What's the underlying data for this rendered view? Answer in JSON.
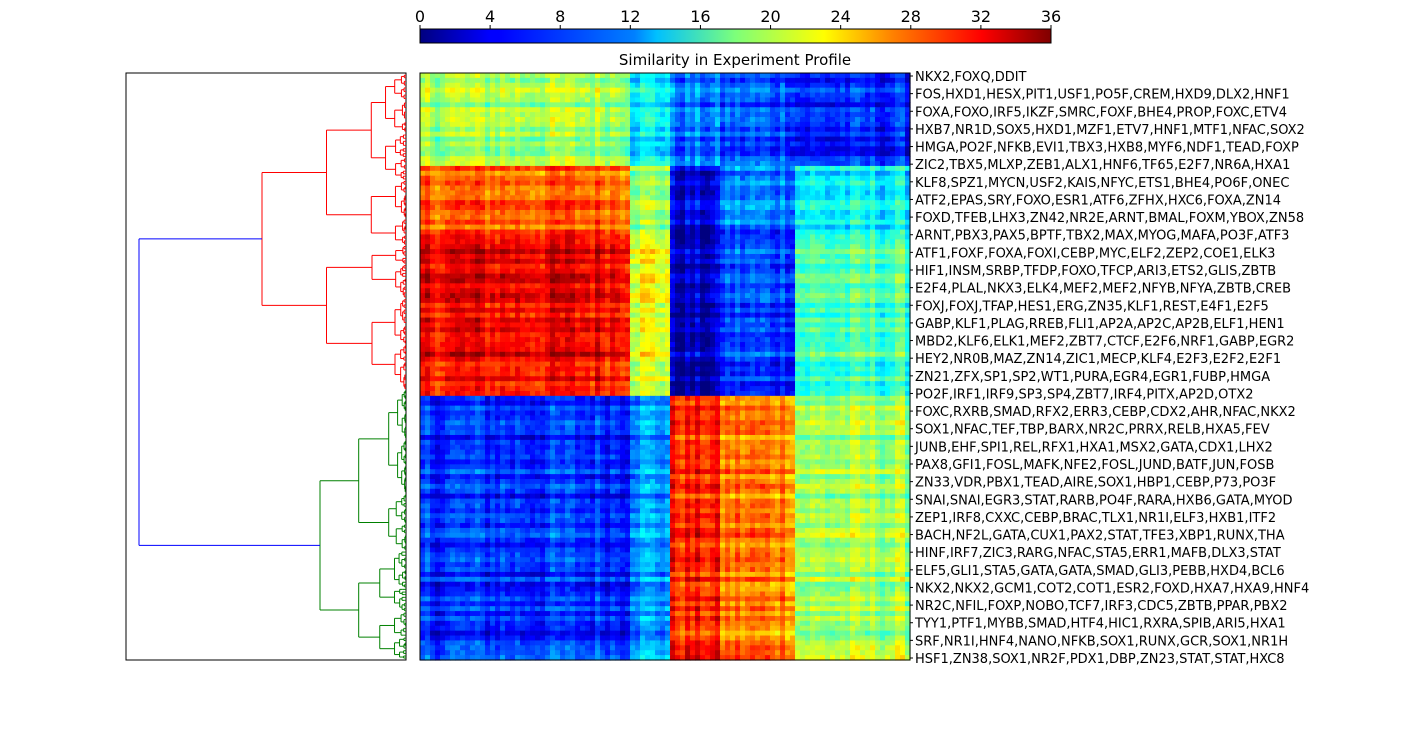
{
  "chart_data": {
    "type": "heatmap",
    "title": "Similarity in Experiment Profile",
    "colorbar": {
      "ticks": [
        0,
        4,
        8,
        12,
        16,
        20,
        24,
        28,
        32,
        36
      ],
      "range": [
        0,
        36
      ],
      "colormap": "jet",
      "placement": "top"
    },
    "row_labels": [
      "NKX2,FOXQ,DDIT",
      "FOS,HXD1,HESX,PIT1,USF1,PO5F,CREM,HXD9,DLX2,HNF1",
      "FOXA,FOXO,IRF5,IKZF,SMRC,FOXF,BHE4,PROP,FOXC,ETV4",
      "HXB7,NR1D,SOX5,HXD1,MZF1,ETV7,HNF1,MTF1,NFAC,SOX2",
      "HMGA,PO2F,NFKB,EVI1,TBX3,HXB8,MYF6,NDF1,TEAD,FOXP",
      "ZIC2,TBX5,MLXP,ZEB1,ALX1,HNF6,TF65,E2F7,NR6A,HXA1",
      "KLF8,SPZ1,MYCN,USF2,KAIS,NFYC,ETS1,BHE4,PO6F,ONEC",
      "ATF2,EPAS,SRY,FOXO,ESR1,ATF6,ZFHX,HXC6,FOXA,ZN14",
      "FOXD,TFEB,LHX3,ZN42,NR2E,ARNT,BMAL,FOXM,YBOX,ZN58",
      "ARNT,PBX3,PAX5,BPTF,TBX2,MAX,MYOG,MAFA,PO3F,ATF3",
      "ATF1,FOXF,FOXA,FOXI,CEBP,MYC,ELF2,ZEP2,COE1,ELK3",
      "HIF1,INSM,SRBP,TFDP,FOXO,TFCP,ARI3,ETS2,GLIS,ZBTB",
      "E2F4,PLAL,NKX3,ELK4,MEF2,MEF2,NFYB,NFYA,ZBTB,CREB",
      "FOXJ,FOXJ,TFAP,HES1,ERG,ZN35,KLF1,REST,E4F1,E2F5",
      "GABP,KLF1,PLAG,RREB,FLI1,AP2A,AP2C,AP2B,ELF1,HEN1",
      "MBD2,KLF6,ELK1,MEF2,ZBT7,CTCF,E2F6,NRF1,GABP,EGR2",
      "HEY2,NR0B,MAZ,ZN14,ZIC1,MECP,KLF4,E2F3,E2F2,E2F1",
      "ZN21,ZFX,SP1,SP2,WT1,PURA,EGR4,EGR1,FUBP,HMGA",
      "PO2F,IRF1,IRF9,SP3,SP4,ZBT7,IRF4,PITX,AP2D,OTX2",
      "FOXC,RXRB,SMAD,RFX2,ERR3,CEBP,CDX2,AHR,NFAC,NKX2",
      "SOX1,NFAC,TEF,TBP,BARX,NR2C,PRRX,RELB,HXA5,FEV",
      "JUNB,EHF,SPI1,REL,RFX1,HXA1,MSX2,GATA,CDX1,LHX2",
      "PAX8,GFI1,FOSL,MAFK,NFE2,FOSL,JUND,BATF,JUN,FOSB",
      "ZN33,VDR,PBX1,TEAD,AIRE,SOX1,HBP1,CEBP,P73,PO3F",
      "SNAI,SNAI,EGR3,STAT,RARB,PO4F,RARA,HXB6,GATA,MYOD",
      "ZEP1,IRF8,CXXC,CEBP,BRAC,TLX1,NR1I,ELF3,HXB1,ITF2",
      "BACH,NF2L,GATA,CUX1,PAX2,STAT,TFE3,XBP1,RUNX,THA",
      "HINF,IRF7,ZIC3,RARG,NFAC,STA5,ERR1,MAFB,DLX3,STAT",
      "ELF5,GLI1,STA5,GATA,GATA,SMAD,GLI3,PEBB,HXD4,BCL6",
      "NKX2,NKX2,GCM1,COT2,COT1,ESR2,FOXD,HXA7,HXA9,HNF4",
      "NR2C,NFIL,FOXP,NOBO,TCF7,IRF3,CDC5,ZBTB,PPAR,PBX2",
      "TYY1,PTF1,MYBB,SMAD,HTF4,HIC1,RXRA,SPIB,ARI5,HXA1",
      "SRF,NR1I,HNF4,NANO,NFKB,SOX1,RUNX,GCR,SOX1,NR1H",
      "HSF1,ZN38,SOX1,NR2F,PDX1,DBP,ZN23,STAT,STAT,HXC8"
    ],
    "column_groups": [
      {
        "name": "g1",
        "span": 0.43
      },
      {
        "name": "g2",
        "span": 0.085
      },
      {
        "name": "g3",
        "span": 0.1
      },
      {
        "name": "g4",
        "span": 0.15
      },
      {
        "name": "g5",
        "span": 0.235
      }
    ],
    "row_groups": [
      {
        "name": "r1",
        "span": 0.155
      },
      {
        "name": "r2",
        "span": 0.11
      },
      {
        "name": "r3",
        "span": 0.285
      },
      {
        "name": "r4",
        "span": 0.45
      }
    ],
    "block_values": [
      [
        19,
        13,
        8,
        7,
        5
      ],
      [
        28,
        19,
        3,
        9,
        13
      ],
      [
        32,
        22,
        2,
        7,
        16
      ],
      [
        6,
        10,
        30,
        27,
        19
      ]
    ],
    "dendrogram": {
      "orientation": "left",
      "clusters": [
        {
          "name": "upper",
          "color": "#ff0000",
          "span": 0.54
        },
        {
          "name": "lower",
          "color": "#008000",
          "span": 0.46
        }
      ],
      "root_color": "#0000ff"
    },
    "colors": {
      "upper_cluster": "#ff0000",
      "lower_cluster": "#008000",
      "root_link": "#0000ff"
    }
  }
}
